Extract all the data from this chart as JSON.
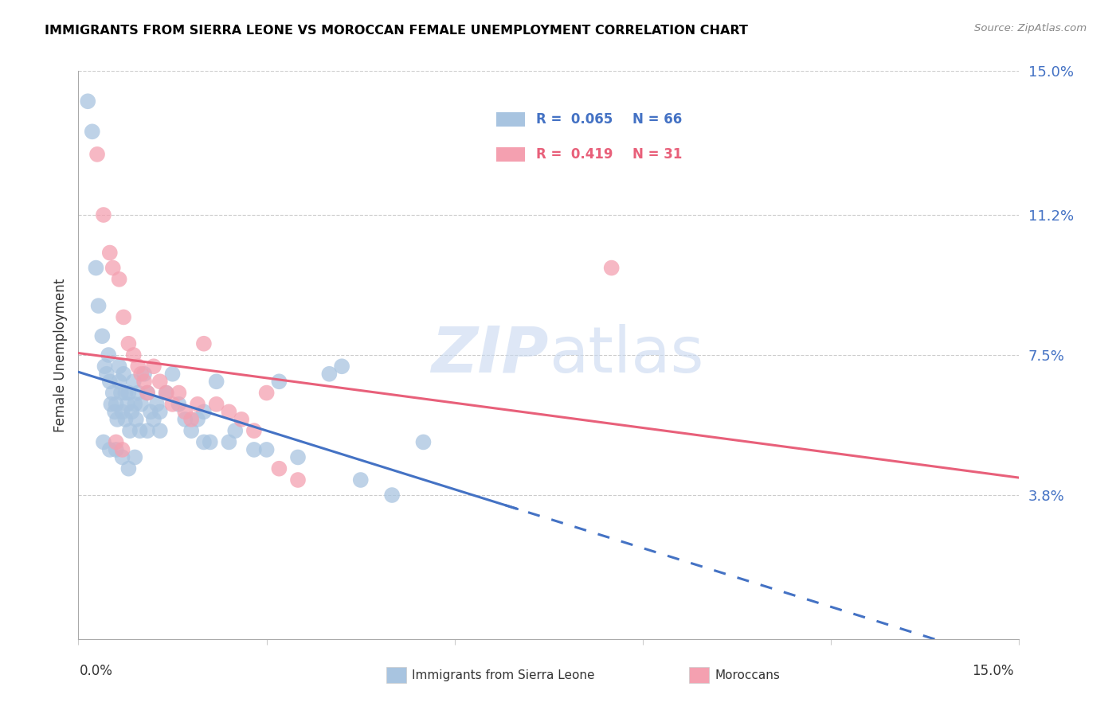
{
  "title": "IMMIGRANTS FROM SIERRA LEONE VS MOROCCAN FEMALE UNEMPLOYMENT CORRELATION CHART",
  "source": "Source: ZipAtlas.com",
  "ylabel": "Female Unemployment",
  "xlim": [
    0.0,
    15.0
  ],
  "ylim": [
    0.0,
    15.0
  ],
  "ytick_vals": [
    3.8,
    7.5,
    11.2,
    15.0
  ],
  "ytick_labels": [
    "3.8%",
    "7.5%",
    "11.2%",
    "15.0%"
  ],
  "color_blue": "#a8c4e0",
  "color_pink": "#f4a0b0",
  "color_blue_line": "#4472c4",
  "color_pink_line": "#e8607a",
  "R1": 0.065,
  "N1": 66,
  "R2": 0.419,
  "N2": 31,
  "sierra_leone_x": [
    0.15,
    0.22,
    0.28,
    0.32,
    0.38,
    0.42,
    0.45,
    0.48,
    0.5,
    0.52,
    0.55,
    0.58,
    0.6,
    0.62,
    0.65,
    0.65,
    0.68,
    0.7,
    0.72,
    0.75,
    0.75,
    0.78,
    0.8,
    0.82,
    0.85,
    0.88,
    0.9,
    0.92,
    0.95,
    0.98,
    1.0,
    1.05,
    1.1,
    1.15,
    1.2,
    1.25,
    1.3,
    1.4,
    1.5,
    1.6,
    1.7,
    1.8,
    1.9,
    2.0,
    2.1,
    2.2,
    2.4,
    2.5,
    2.8,
    3.0,
    3.2,
    3.5,
    4.0,
    4.5,
    5.0,
    5.5,
    0.4,
    0.5,
    0.6,
    0.7,
    0.8,
    0.9,
    1.1,
    1.3,
    2.0,
    4.2
  ],
  "sierra_leone_y": [
    14.2,
    13.4,
    9.8,
    8.8,
    8.0,
    7.2,
    7.0,
    7.5,
    6.8,
    6.2,
    6.5,
    6.0,
    6.2,
    5.8,
    6.8,
    7.2,
    6.5,
    6.0,
    7.0,
    6.5,
    5.8,
    6.2,
    6.5,
    5.5,
    6.0,
    6.8,
    6.2,
    5.8,
    6.5,
    5.5,
    6.2,
    7.0,
    6.5,
    6.0,
    5.8,
    6.2,
    6.0,
    6.5,
    7.0,
    6.2,
    5.8,
    5.5,
    5.8,
    6.0,
    5.2,
    6.8,
    5.2,
    5.5,
    5.0,
    5.0,
    6.8,
    4.8,
    7.0,
    4.2,
    3.8,
    5.2,
    5.2,
    5.0,
    5.0,
    4.8,
    4.5,
    4.8,
    5.5,
    5.5,
    5.2,
    7.2
  ],
  "moroccan_x": [
    0.3,
    0.4,
    0.5,
    0.55,
    0.65,
    0.72,
    0.8,
    0.88,
    0.95,
    1.0,
    1.05,
    1.1,
    1.2,
    1.3,
    1.4,
    1.5,
    1.6,
    1.7,
    1.8,
    1.9,
    2.0,
    2.2,
    2.4,
    2.6,
    2.8,
    3.0,
    3.2,
    3.5,
    0.6,
    8.5,
    0.7
  ],
  "moroccan_y": [
    12.8,
    11.2,
    10.2,
    9.8,
    9.5,
    8.5,
    7.8,
    7.5,
    7.2,
    7.0,
    6.8,
    6.5,
    7.2,
    6.8,
    6.5,
    6.2,
    6.5,
    6.0,
    5.8,
    6.2,
    7.8,
    6.2,
    6.0,
    5.8,
    5.5,
    6.5,
    4.5,
    4.2,
    5.2,
    9.8,
    5.0
  ]
}
